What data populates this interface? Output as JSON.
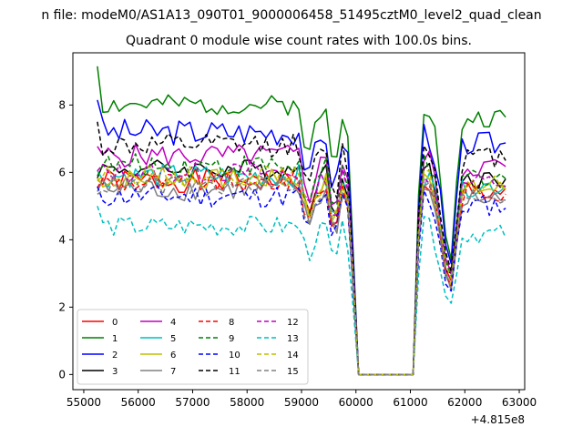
{
  "chart_data": {
    "type": "line",
    "suptitle": "n file: modeM0/AS1A13_090T01_9000006458_51495cztM0_level2_quad_clean",
    "title": "Quadrant 0 module wise count rates with 100.0s bins.",
    "xlabel": "",
    "ylabel": "",
    "offset_label": "+4.815e8",
    "xlim": [
      54800,
      63100
    ],
    "ylim": [
      -0.45,
      9.55
    ],
    "xticks": [
      55000,
      56000,
      57000,
      58000,
      59000,
      60000,
      61000,
      62000,
      63000
    ],
    "xtick_labels": [
      "55000",
      "56000",
      "57000",
      "58000",
      "59000",
      "60000",
      "61000",
      "62000",
      "63000"
    ],
    "yticks": [
      0,
      2,
      4,
      6,
      8
    ],
    "ytick_labels": [
      "0",
      "2",
      "4",
      "6",
      "8"
    ],
    "grid": false,
    "legend_placement": "lower-left",
    "legend_columns": 4,
    "x_start": 55250,
    "x_step": 100,
    "gap_x": [
      60100,
      60200,
      60300,
      60400,
      60500,
      60600,
      60700,
      60800,
      60900,
      61000
    ],
    "anchors": [
      {
        "x": 59000,
        "f": 1.0
      },
      {
        "x": 59100,
        "f": 0.75
      },
      {
        "x": 59200,
        "f": 0.88
      },
      {
        "x": 59300,
        "f": 0.95
      },
      {
        "x": 59400,
        "f": 0.97
      },
      {
        "x": 59500,
        "f": 1.0
      },
      {
        "x": 59600,
        "f": 0.6
      },
      {
        "x": 59700,
        "f": 1.0
      },
      {
        "x": 59800,
        "f": 0.95
      },
      {
        "x": 59900,
        "f": 0.85
      },
      {
        "x": 60000,
        "f": 0.08
      },
      {
        "x": 60050,
        "f": 0.0
      },
      {
        "x": 61050,
        "f": 0.0
      },
      {
        "x": 61100,
        "f": 0.4
      },
      {
        "x": 61200,
        "f": 0.98
      },
      {
        "x": 61300,
        "f": 1.02
      },
      {
        "x": 61400,
        "f": 0.95
      },
      {
        "x": 61500,
        "f": 0.85
      },
      {
        "x": 61600,
        "f": 0.6
      },
      {
        "x": 61700,
        "f": 0.45
      },
      {
        "x": 61800,
        "f": 0.5
      },
      {
        "x": 61900,
        "f": 0.9
      },
      {
        "x": 62000,
        "f": 0.95
      },
      {
        "x": 62750,
        "f": 0.95
      }
    ],
    "series": [
      {
        "name": "0",
        "color": "#ff0000",
        "dash": false,
        "base": 5.75,
        "amp": 0.35,
        "seed": 1
      },
      {
        "name": "1",
        "color": "#008000",
        "dash": false,
        "base": 8.0,
        "amp": 0.3,
        "seed": 2,
        "start": 9.15
      },
      {
        "name": "2",
        "color": "#0000ff",
        "dash": false,
        "base": 7.2,
        "amp": 0.4,
        "seed": 3,
        "start": 8.15
      },
      {
        "name": "3",
        "color": "#000000",
        "dash": false,
        "base": 6.1,
        "amp": 0.3,
        "seed": 4
      },
      {
        "name": "4",
        "color": "#bf00bf",
        "dash": false,
        "base": 6.5,
        "amp": 0.35,
        "seed": 5
      },
      {
        "name": "5",
        "color": "#00bfbf",
        "dash": false,
        "base": 5.9,
        "amp": 0.35,
        "seed": 6
      },
      {
        "name": "6",
        "color": "#bfbf00",
        "dash": false,
        "base": 5.8,
        "amp": 0.3,
        "seed": 7
      },
      {
        "name": "7",
        "color": "#808080",
        "dash": false,
        "base": 5.5,
        "amp": 0.35,
        "seed": 8
      },
      {
        "name": "8",
        "color": "#ff0000",
        "dash": true,
        "base": 5.7,
        "amp": 0.3,
        "seed": 9
      },
      {
        "name": "9",
        "color": "#008000",
        "dash": true,
        "base": 6.2,
        "amp": 0.35,
        "seed": 10
      },
      {
        "name": "10",
        "color": "#0000ff",
        "dash": true,
        "base": 5.3,
        "amp": 0.35,
        "seed": 11
      },
      {
        "name": "11",
        "color": "#000000",
        "dash": true,
        "base": 6.8,
        "amp": 0.35,
        "seed": 12,
        "start": 7.5
      },
      {
        "name": "12",
        "color": "#bf00bf",
        "dash": true,
        "base": 6.0,
        "amp": 0.3,
        "seed": 13
      },
      {
        "name": "13",
        "color": "#00bfbf",
        "dash": true,
        "base": 4.4,
        "amp": 0.3,
        "seed": 14,
        "start": 5.0
      },
      {
        "name": "14",
        "color": "#bfbf00",
        "dash": true,
        "base": 5.9,
        "amp": 0.3,
        "seed": 15
      },
      {
        "name": "15",
        "color": "#808080",
        "dash": true,
        "base": 5.6,
        "amp": 0.3,
        "seed": 16
      }
    ]
  }
}
